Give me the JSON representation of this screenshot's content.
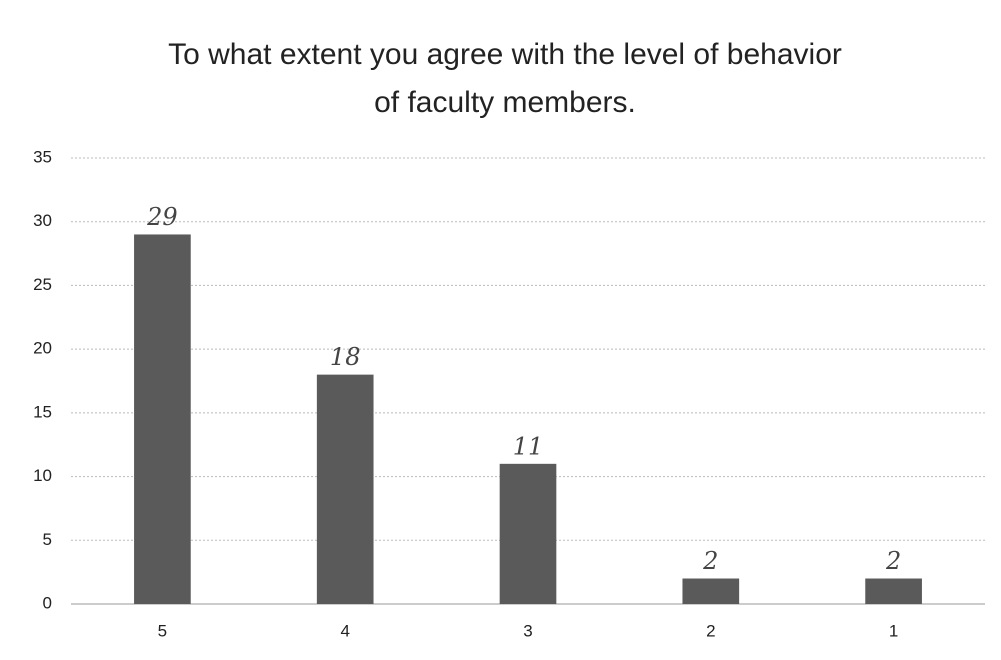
{
  "chart_data": {
    "type": "bar",
    "title": [
      "To what extent you agree with the level of behavior",
      "of faculty members."
    ],
    "categories": [
      "5",
      "4",
      "3",
      "2",
      "1"
    ],
    "values": [
      29,
      18,
      11,
      2,
      2
    ],
    "color": "#5a5a5a",
    "ylim": [
      0,
      35
    ],
    "yticks": [
      0,
      5,
      10,
      15,
      20,
      25,
      30,
      35
    ],
    "grid": true
  }
}
